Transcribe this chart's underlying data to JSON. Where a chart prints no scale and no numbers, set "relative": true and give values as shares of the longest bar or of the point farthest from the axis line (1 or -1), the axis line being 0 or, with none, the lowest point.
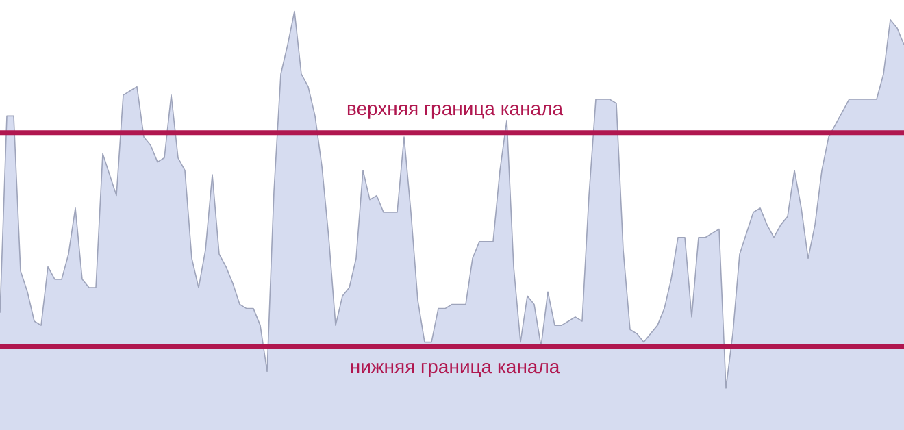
{
  "chart_data": {
    "type": "area",
    "relative": true,
    "categories": [
      null,
      null,
      null,
      null,
      null,
      null,
      null,
      null,
      null,
      null,
      null,
      null,
      null,
      null,
      null,
      null,
      null,
      null,
      null,
      null,
      null,
      null,
      null,
      null,
      null,
      null,
      null,
      null,
      null,
      null,
      null,
      null,
      null,
      null,
      null,
      null,
      null,
      null,
      null,
      null,
      null,
      null,
      null,
      null,
      null,
      null,
      null,
      null,
      null,
      null,
      null,
      null,
      null,
      null,
      null,
      null,
      null,
      null,
      null,
      null,
      null,
      null,
      null,
      null,
      null,
      null,
      null,
      null,
      null,
      null,
      null,
      null,
      null,
      null,
      null,
      null,
      null,
      null,
      null,
      null,
      null,
      null,
      null,
      null,
      null,
      null,
      null,
      null,
      null,
      null,
      null,
      null,
      null,
      null,
      null,
      null,
      null,
      null,
      null,
      null,
      null,
      null,
      null,
      null,
      null,
      null,
      null,
      null,
      null,
      null,
      null,
      null,
      null,
      null,
      null,
      null,
      null,
      null,
      null,
      null,
      null,
      null,
      null,
      null,
      null,
      null,
      null,
      null,
      null,
      null,
      null,
      null,
      null
    ],
    "series": [
      {
        "color": "#c5cdea",
        "values": [
          0.28,
          0.75,
          0.75,
          0.38,
          0.33,
          0.26,
          0.25,
          0.39,
          0.36,
          0.36,
          0.42,
          0.53,
          0.36,
          0.34,
          0.34,
          0.66,
          0.61,
          0.56,
          0.8,
          0.81,
          0.82,
          0.7,
          0.68,
          0.64,
          0.65,
          0.8,
          0.65,
          0.62,
          0.41,
          0.34,
          0.43,
          0.61,
          0.42,
          0.39,
          0.35,
          0.3,
          0.29,
          0.29,
          0.25,
          0.14,
          0.57,
          0.85,
          0.92,
          1.0,
          0.85,
          0.82,
          0.75,
          0.63,
          0.46,
          0.25,
          0.32,
          0.34,
          0.41,
          0.62,
          0.55,
          0.56,
          0.52,
          0.52,
          0.52,
          0.7,
          0.52,
          0.31,
          0.21,
          0.21,
          0.29,
          0.29,
          0.3,
          0.3,
          0.3,
          0.41,
          0.45,
          0.45,
          0.45,
          0.62,
          0.74,
          0.39,
          0.21,
          0.32,
          0.3,
          0.2,
          0.33,
          0.25,
          0.25,
          0.26,
          0.27,
          0.26,
          0.56,
          0.79,
          0.79,
          0.79,
          0.78,
          0.43,
          0.24,
          0.23,
          0.21,
          0.23,
          0.25,
          0.29,
          0.36,
          0.46,
          0.46,
          0.27,
          0.46,
          0.46,
          0.47,
          0.48,
          0.1,
          0.23,
          0.42,
          0.47,
          0.52,
          0.53,
          0.49,
          0.46,
          0.49,
          0.51,
          0.62,
          0.53,
          0.41,
          0.49,
          0.62,
          0.7,
          0.73,
          0.76,
          0.79,
          0.79,
          0.79,
          0.79,
          0.79,
          0.85,
          0.98,
          0.96,
          0.92
        ]
      }
    ],
    "ref_lines": [
      {
        "axis": "y",
        "value": 0.71,
        "label": "верхняя граница канала",
        "color": "#b0174f"
      },
      {
        "axis": "y",
        "value": 0.2,
        "label": "нижняя граница канала",
        "color": "#b0174f"
      }
    ]
  }
}
